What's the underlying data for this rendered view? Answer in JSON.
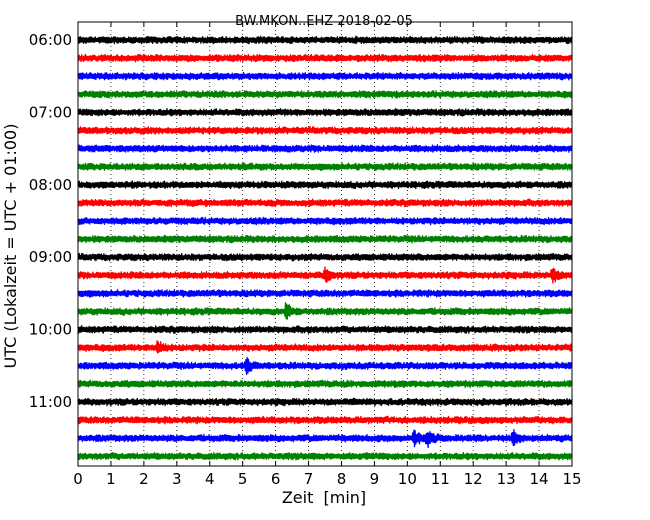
{
  "chart_data": {
    "type": "line",
    "title": "BW.MKON..EHZ 2018-02-05",
    "xlabel": "Zeit  [min]",
    "ylabel": "UTC (Lokalzeit = UTC + 01:00)",
    "xlim": [
      0,
      15
    ],
    "x_ticks": [
      "0",
      "1",
      "2",
      "3",
      "4",
      "5",
      "6",
      "7",
      "8",
      "9",
      "10",
      "11",
      "12",
      "13",
      "14",
      "15"
    ],
    "y_tick_labels": [
      "06:00",
      "07:00",
      "08:00",
      "09:00",
      "10:00",
      "11:00"
    ],
    "trace_interval_minutes": 15,
    "first_trace_start": "06:00",
    "trace_colors": [
      "#000000",
      "#ff0000",
      "#0000ff",
      "#008000"
    ],
    "grid": "vertical dotted lines at each minute",
    "series": [
      {
        "start": "06:00",
        "color": "#000000"
      },
      {
        "start": "06:15",
        "color": "#ff0000"
      },
      {
        "start": "06:30",
        "color": "#0000ff"
      },
      {
        "start": "06:45",
        "color": "#008000"
      },
      {
        "start": "07:00",
        "color": "#000000"
      },
      {
        "start": "07:15",
        "color": "#ff0000"
      },
      {
        "start": "07:30",
        "color": "#0000ff"
      },
      {
        "start": "07:45",
        "color": "#008000"
      },
      {
        "start": "08:00",
        "color": "#000000"
      },
      {
        "start": "08:15",
        "color": "#ff0000"
      },
      {
        "start": "08:30",
        "color": "#0000ff"
      },
      {
        "start": "08:45",
        "color": "#008000"
      },
      {
        "start": "09:00",
        "color": "#000000"
      },
      {
        "start": "09:15",
        "color": "#ff0000",
        "events_min": [
          7.5,
          14.4
        ]
      },
      {
        "start": "09:30",
        "color": "#0000ff"
      },
      {
        "start": "09:45",
        "color": "#008000",
        "events_min": [
          6.3
        ]
      },
      {
        "start": "10:00",
        "color": "#000000"
      },
      {
        "start": "10:15",
        "color": "#ff0000",
        "events_min": [
          2.4
        ]
      },
      {
        "start": "10:30",
        "color": "#0000ff",
        "events_min": [
          5.1
        ]
      },
      {
        "start": "10:45",
        "color": "#008000"
      },
      {
        "start": "11:00",
        "color": "#000000"
      },
      {
        "start": "11:15",
        "color": "#ff0000"
      },
      {
        "start": "11:30",
        "color": "#0000ff",
        "events_min": [
          10.2,
          10.6,
          13.2
        ]
      },
      {
        "start": "11:45",
        "color": "#008000"
      }
    ]
  }
}
